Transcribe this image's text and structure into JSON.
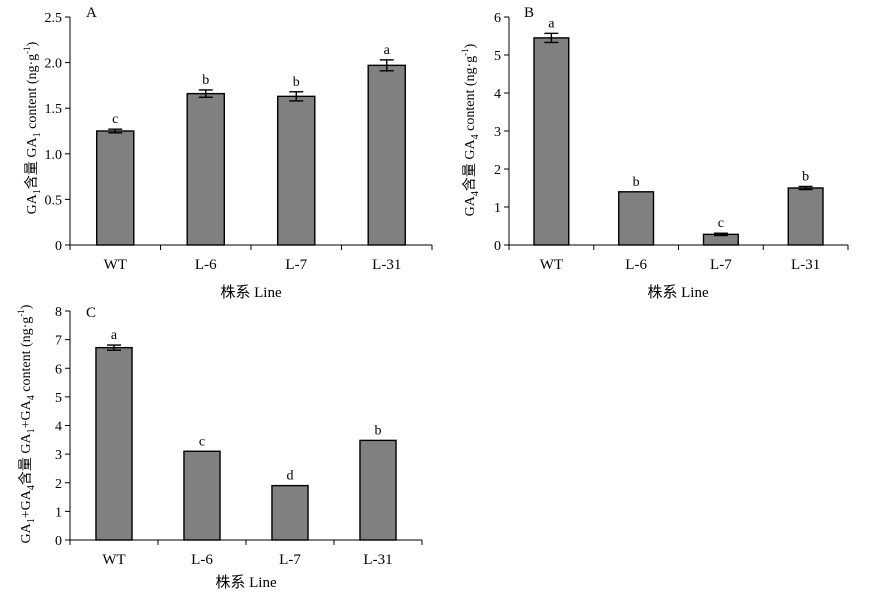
{
  "chart_data": [
    {
      "type": "bar",
      "panel": "A",
      "categories": [
        "WT",
        "L-6",
        "L-7",
        "L-31"
      ],
      "values": [
        1.25,
        1.66,
        1.63,
        1.97
      ],
      "errors": [
        0.02,
        0.04,
        0.05,
        0.06
      ],
      "significance": [
        "c",
        "b",
        "b",
        "a"
      ],
      "ylim": [
        0,
        2.5
      ],
      "yticks": [
        "0",
        "0.5",
        "1.0",
        "1.5",
        "2.0",
        "2.5"
      ],
      "ylabel": {
        "pre": "GA",
        "s1": "1",
        "mid": "含量 GA",
        "s2": "1",
        "post": " content (ng·g",
        "sup": "-1",
        "end": ")"
      },
      "xlabel": "株系 Line",
      "bar_color": "#808080",
      "grid": false
    },
    {
      "type": "bar",
      "panel": "B",
      "categories": [
        "WT",
        "L-6",
        "L-7",
        "L-31"
      ],
      "values": [
        5.45,
        1.4,
        0.28,
        1.5
      ],
      "errors": [
        0.12,
        0.0,
        0.03,
        0.04
      ],
      "significance": [
        "a",
        "b",
        "c",
        "b"
      ],
      "ylim": [
        0,
        6
      ],
      "yticks": [
        "0",
        "1",
        "2",
        "3",
        "4",
        "5",
        "6"
      ],
      "ylabel": {
        "pre": "GA",
        "s1": "4",
        "mid": "含量 GA",
        "s2": "4",
        "post": " content (ng·g",
        "sup": "-1",
        "end": ")"
      },
      "xlabel": "株系 Line",
      "bar_color": "#808080",
      "grid": false
    },
    {
      "type": "bar",
      "panel": "C",
      "categories": [
        "WT",
        "L-6",
        "L-7",
        "L-31"
      ],
      "values": [
        6.72,
        3.1,
        1.9,
        3.48
      ],
      "errors": [
        0.09,
        0.0,
        0.0,
        0.0
      ],
      "significance": [
        "a",
        "c",
        "d",
        "b"
      ],
      "ylim": [
        0,
        8
      ],
      "yticks": [
        "0",
        "1",
        "2",
        "3",
        "4",
        "5",
        "6",
        "7",
        "8"
      ],
      "ylabel": {
        "pre": "GA",
        "s1": "1",
        "mid": "+GA",
        "s2": "4",
        "mid2": "含量 GA",
        "s3": "1",
        "mid3": "+GA",
        "s4": "4",
        "post": " content (ng·g",
        "sup": "-1",
        "end": ")"
      },
      "xlabel": "株系 Line",
      "bar_color": "#808080",
      "grid": false
    }
  ]
}
